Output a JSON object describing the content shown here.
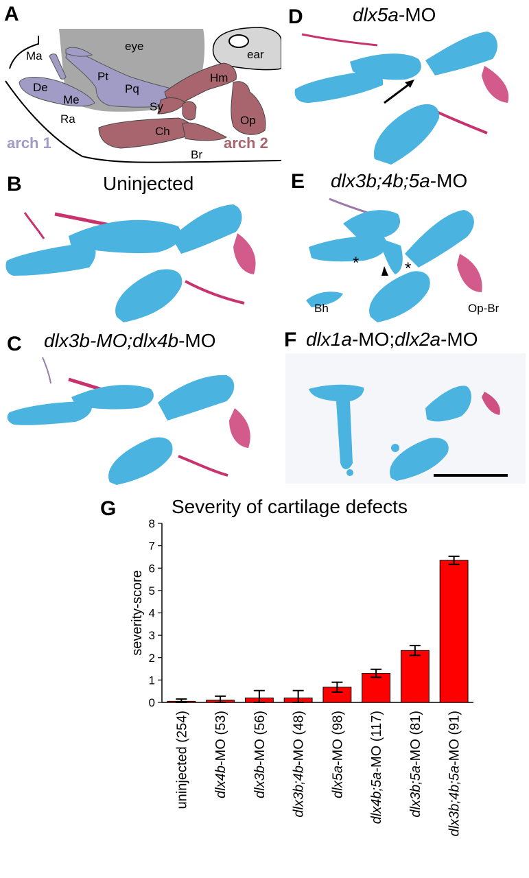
{
  "panels": {
    "A": {
      "letter": "A",
      "labels": {
        "eye": "eye",
        "ear": "ear",
        "Ma": "Ma",
        "Pt": "Pt",
        "Pq": "Pq",
        "De": "De",
        "Me": "Me",
        "Sy": "Sy",
        "Ra": "Ra",
        "Hm": "Hm",
        "Ch": "Ch",
        "Op": "Op",
        "Br": "Br"
      },
      "arch1": "arch 1",
      "arch2": "arch 2",
      "colors": {
        "arch1": "#a09cc6",
        "arch2": "#a9656e",
        "eye": "#a8a8a8",
        "ear": "#d8d8d8"
      }
    },
    "B": {
      "letter": "B",
      "title": "Uninjected"
    },
    "C": {
      "letter": "C",
      "title_parts": [
        "dlx3b-MO;dlx4b",
        "-MO"
      ]
    },
    "D": {
      "letter": "D",
      "title_parts": [
        "dlx5a",
        "-MO"
      ]
    },
    "E": {
      "letter": "E",
      "title_parts": [
        "dlx3b;4b;5a",
        "-MO"
      ],
      "labels": {
        "Bh": "Bh",
        "OpBr": "Op-Br",
        "asterisk": "*"
      }
    },
    "F": {
      "letter": "F",
      "title_parts": [
        "dlx1a",
        "-MO;",
        "dlx2a",
        "-MO"
      ]
    },
    "G": {
      "letter": "G"
    }
  },
  "colors": {
    "cartilage": "#4ab3e0",
    "cartilage_dark": "#2a86c0",
    "bone": "#c8326e",
    "bar": "#ff0000"
  },
  "chart_data": {
    "type": "bar",
    "title": "Severity of cartilage defects",
    "ylabel": "severity-score",
    "xlabel": "",
    "ylim": [
      0,
      8
    ],
    "yticks": [
      0,
      1,
      2,
      3,
      4,
      5,
      6,
      7,
      8
    ],
    "categories": [
      {
        "italic": "",
        "plain": "uninjected (254)"
      },
      {
        "italic": "dlx4b",
        "plain": "-MO (53)"
      },
      {
        "italic": "dlx3b",
        "plain": "-MO (56)"
      },
      {
        "italic": "dlx3b;4b",
        "plain": "-MO (48)"
      },
      {
        "italic": "dlx5a",
        "plain": "-MO (98)"
      },
      {
        "italic": "dlx4b;5a",
        "plain": "-MO (117)"
      },
      {
        "italic": "dlx3b;5a",
        "plain": "-MO (81)"
      },
      {
        "italic": "dlx3b;4b;5a",
        "plain": "-MO (91)"
      }
    ],
    "values": [
      0.05,
      0.1,
      0.2,
      0.2,
      0.68,
      1.3,
      2.32,
      6.35
    ],
    "errors": [
      0.1,
      0.18,
      0.33,
      0.33,
      0.22,
      0.18,
      0.22,
      0.18
    ],
    "grid": false,
    "legend": "none"
  }
}
